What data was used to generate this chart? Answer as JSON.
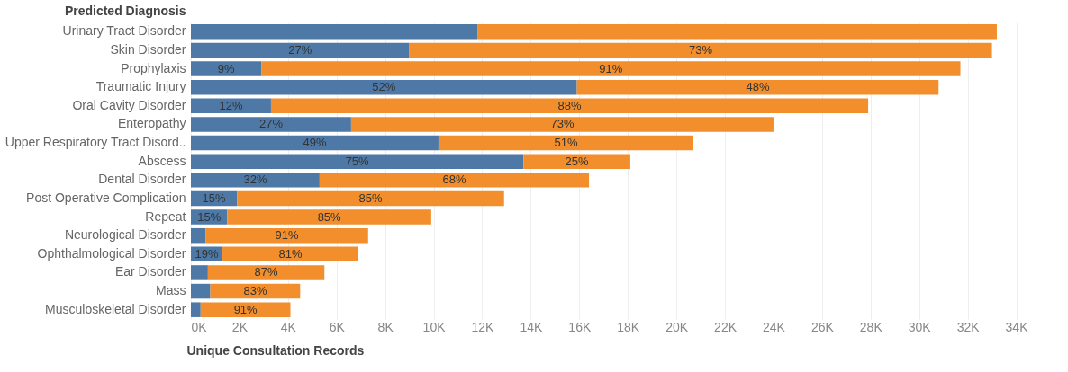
{
  "chart_data": {
    "type": "bar",
    "orientation": "horizontal",
    "stacked": true,
    "ylabel": "Predicted Diagnosis",
    "xlabel": "Unique Consultation Records",
    "categories": [
      "Urinary Tract Disorder",
      "Skin Disorder",
      "Prophylaxis",
      "Traumatic Injury",
      "Oral Cavity Disorder",
      "Enteropathy",
      "Upper Respiratory Tract Disord..",
      "Abscess",
      "Dental Disorder",
      "Post Operative Complication",
      "Repeat",
      "Neurological Disorder",
      "Ophthalmological Disorder",
      "Ear Disorder",
      "Mass",
      "Musculoskeletal Disorder"
    ],
    "series": [
      {
        "color": "#4e79a7",
        "values": [
          11800,
          9000,
          2900,
          15900,
          3300,
          6600,
          10200,
          13700,
          5300,
          1900,
          1500,
          600,
          1300,
          700,
          800,
          400
        ]
      },
      {
        "color": "#f28e2b",
        "values": [
          21400,
          24000,
          28800,
          14900,
          24600,
          17400,
          10500,
          4400,
          11100,
          11000,
          8400,
          6700,
          5600,
          4800,
          3700,
          3700
        ]
      }
    ],
    "annotations": [
      {
        "text": "27%",
        "x": 4500,
        "y": "Skin Disorder"
      },
      {
        "text": "73%",
        "x": 21000,
        "y": "Skin Disorder"
      },
      {
        "text": "9%",
        "x": 1450,
        "y": "Prophylaxis"
      },
      {
        "text": "91%",
        "x": 17300,
        "y": "Prophylaxis"
      },
      {
        "text": "52%",
        "x": 7950,
        "y": "Traumatic Injury"
      },
      {
        "text": "48%",
        "x": 23350,
        "y": "Traumatic Injury"
      },
      {
        "text": "12%",
        "x": 1650,
        "y": "Oral Cavity Disorder"
      },
      {
        "text": "88%",
        "x": 15600,
        "y": "Oral Cavity Disorder"
      },
      {
        "text": "27%",
        "x": 3300,
        "y": "Enteropathy"
      },
      {
        "text": "73%",
        "x": 15300,
        "y": "Enteropathy"
      },
      {
        "text": "49%",
        "x": 5100,
        "y": "Upper Respiratory Tract Disord.."
      },
      {
        "text": "51%",
        "x": 15450,
        "y": "Upper Respiratory Tract Disord.."
      },
      {
        "text": "75%",
        "x": 6850,
        "y": "Abscess"
      },
      {
        "text": "25%",
        "x": 15900,
        "y": "Abscess"
      },
      {
        "text": "32%",
        "x": 2650,
        "y": "Dental Disorder"
      },
      {
        "text": "68%",
        "x": 10850,
        "y": "Dental Disorder"
      },
      {
        "text": "15%",
        "x": 950,
        "y": "Post Operative Complication"
      },
      {
        "text": "85%",
        "x": 7400,
        "y": "Post Operative Complication"
      },
      {
        "text": "15%",
        "x": 750,
        "y": "Repeat"
      },
      {
        "text": "85%",
        "x": 5700,
        "y": "Repeat"
      },
      {
        "text": "91%",
        "x": 3950,
        "y": "Neurological Disorder"
      },
      {
        "text": "19%",
        "x": 650,
        "y": "Ophthalmological Disorder"
      },
      {
        "text": "81%",
        "x": 4100,
        "y": "Ophthalmological Disorder"
      },
      {
        "text": "87%",
        "x": 3100,
        "y": "Ear Disorder"
      },
      {
        "text": "83%",
        "x": 2650,
        "y": "Mass"
      },
      {
        "text": "91%",
        "x": 2250,
        "y": "Musculoskeletal Disorder"
      }
    ],
    "xlim": [
      0,
      34500
    ],
    "xticks": [
      {
        "value": 0,
        "label": "0K"
      },
      {
        "value": 2000,
        "label": "2K"
      },
      {
        "value": 4000,
        "label": "4K"
      },
      {
        "value": 6000,
        "label": "6K"
      },
      {
        "value": 8000,
        "label": "8K"
      },
      {
        "value": 10000,
        "label": "10K"
      },
      {
        "value": 12000,
        "label": "12K"
      },
      {
        "value": 14000,
        "label": "14K"
      },
      {
        "value": 16000,
        "label": "16K"
      },
      {
        "value": 18000,
        "label": "18K"
      },
      {
        "value": 20000,
        "label": "20K"
      },
      {
        "value": 22000,
        "label": "22K"
      },
      {
        "value": 24000,
        "label": "24K"
      },
      {
        "value": 26000,
        "label": "26K"
      },
      {
        "value": 28000,
        "label": "28K"
      },
      {
        "value": 30000,
        "label": "30K"
      },
      {
        "value": 32000,
        "label": "32K"
      },
      {
        "value": 34000,
        "label": "34K"
      }
    ],
    "grid": "x",
    "legend": false
  }
}
